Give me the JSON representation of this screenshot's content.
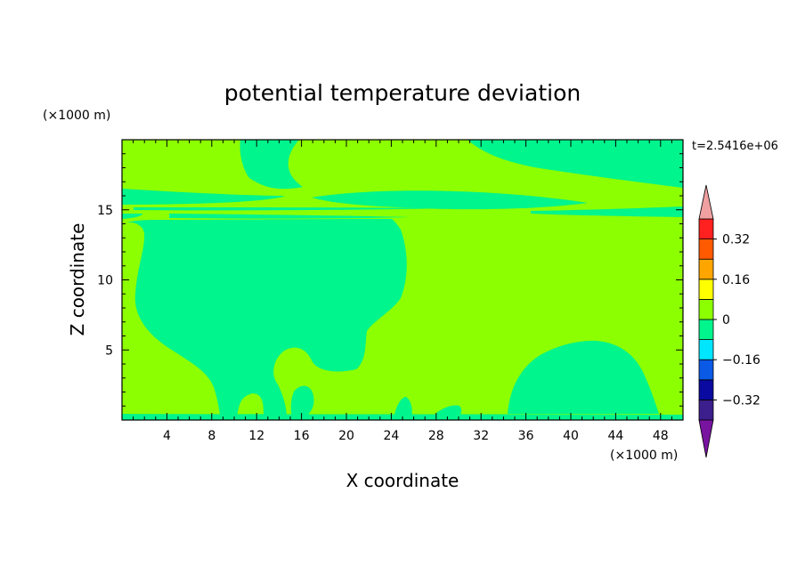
{
  "chart_data": {
    "type": "heatmap",
    "title": "potential temperature deviation",
    "xlabel": "X coordinate",
    "ylabel": "Z coordinate",
    "x_unit": "(×1000 m)",
    "y_unit": "(×1000 m)",
    "time_label": "t=2.5416e+06",
    "xlim": [
      0,
      50
    ],
    "ylim": [
      0,
      20
    ],
    "x_ticks": [
      4,
      8,
      12,
      16,
      20,
      24,
      28,
      32,
      36,
      40,
      44,
      48
    ],
    "y_ticks": [
      5,
      10,
      15
    ],
    "colorbar": {
      "levels": [
        -0.4,
        -0.32,
        -0.24,
        -0.16,
        -0.08,
        0,
        0.08,
        0.16,
        0.24,
        0.32,
        0.4
      ],
      "colors": [
        "#3c1e8c",
        "#0a0aa0",
        "#0a5ae6",
        "#00e6ff",
        "#00f58c",
        "#8cff00",
        "#ffff00",
        "#ffa500",
        "#ff5a00",
        "#ff2020"
      ],
      "under_color": "#7814a0",
      "over_color": "#f0a0a0",
      "tick_labels": [
        {
          "value": -0.32,
          "text": "−0.32"
        },
        {
          "value": -0.16,
          "text": "−0.16"
        },
        {
          "value": 0,
          "text": "0"
        },
        {
          "value": 0.16,
          "text": "0.16"
        },
        {
          "value": 0.32,
          "text": "0.32"
        }
      ]
    },
    "field_description_colors": {
      "background_level": "#8cff00",
      "negative_level": "#00f58c"
    },
    "regions": [
      {
        "name": "negative-region-top-left",
        "level_range": [
          -0.08,
          0
        ]
      },
      {
        "name": "negative-region-top-right",
        "level_range": [
          -0.08,
          0
        ]
      },
      {
        "name": "negative-layer-16km",
        "level_range": [
          -0.08,
          0
        ]
      },
      {
        "name": "negative-region-large-left",
        "level_range": [
          -0.08,
          0
        ]
      },
      {
        "name": "negative-region-bubble-right",
        "level_range": [
          -0.08,
          0
        ]
      },
      {
        "name": "negative-layer-surface",
        "level_range": [
          -0.08,
          0
        ]
      }
    ]
  }
}
